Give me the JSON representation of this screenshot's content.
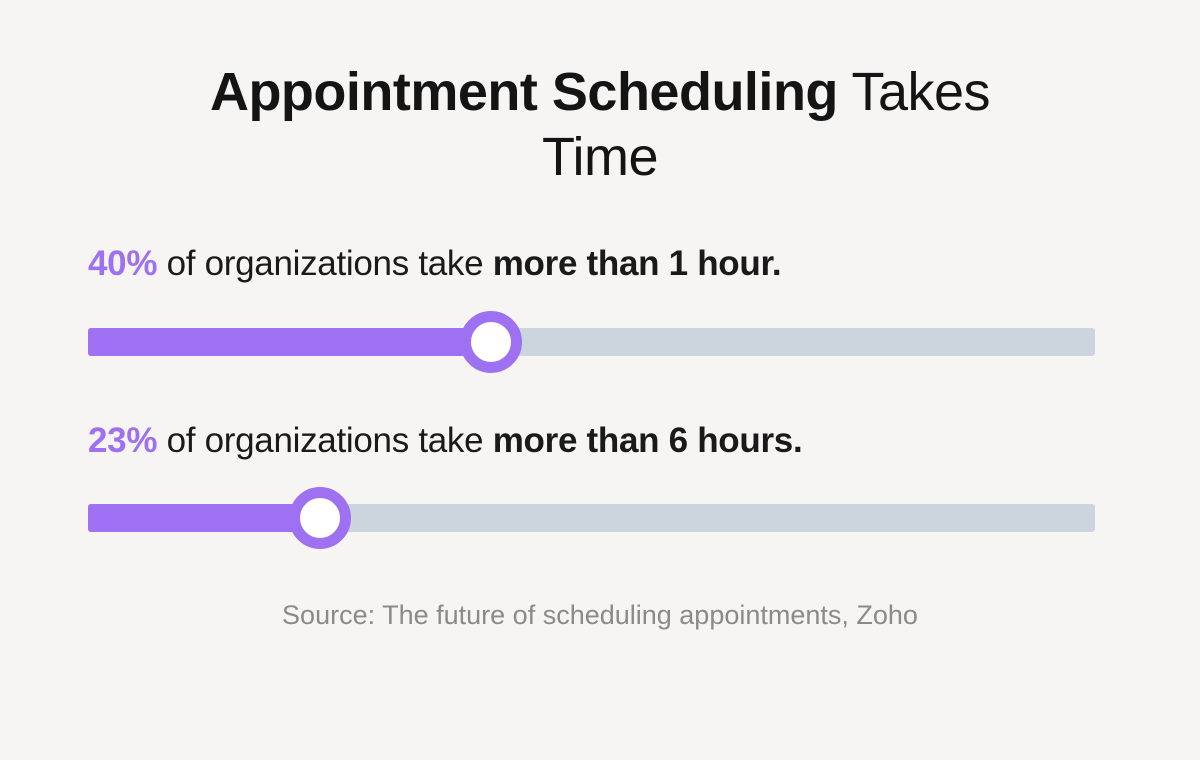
{
  "page": {
    "background_color": "#f6f5f4",
    "accent_color": "#9e70f2",
    "track_color": "#ccd5dd"
  },
  "title": {
    "emphasis": "Appointment Scheduling",
    "rest_line1": "Takes",
    "line2": "Time"
  },
  "stats": [
    {
      "value": "40%",
      "middle": "of organizations take",
      "emphasis": "more than 1 hour.",
      "percent": 40
    },
    {
      "value": "23%",
      "middle": "of organizations take",
      "emphasis": "more than 6 hours.",
      "percent": 23
    }
  ],
  "source": {
    "text": "Source: The future of scheduling appointments, Zoho"
  },
  "chart_data": {
    "type": "bar",
    "title": "Appointment Scheduling Takes Time",
    "categories": [
      "more than 1 hour",
      "more than 6 hours"
    ],
    "values": [
      40,
      23
    ],
    "unit": "% of organizations",
    "xlim": [
      0,
      100
    ],
    "orientation": "horizontal",
    "legend": "none",
    "grid": false,
    "bar_color": "#9e70f2",
    "track_color": "#ccd5dd",
    "annotations": [
      "40% of organizations take more than 1 hour.",
      "23% of organizations take more than 6 hours."
    ],
    "source": "Source: The future of scheduling appointments, Zoho"
  }
}
